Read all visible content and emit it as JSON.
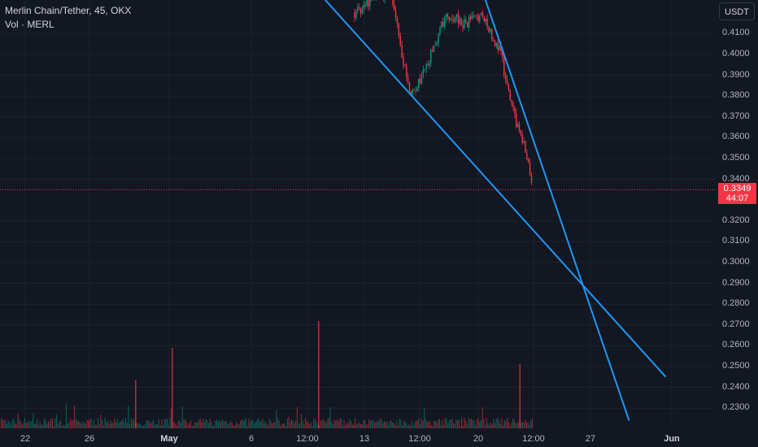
{
  "legend": {
    "symbol": "Merlin Chain/Tether, 45, OKX",
    "volume": "Vol · MERL"
  },
  "currency_button": "USDT",
  "current_price": {
    "price": "0.3349",
    "countdown": "44:07",
    "color": "#f23645"
  },
  "price_axis": [
    "0.4100",
    "0.4000",
    "0.3900",
    "0.3800",
    "0.3700",
    "0.3600",
    "0.3500",
    "0.3400",
    "0.3200",
    "0.3100",
    "0.3000",
    "0.2900",
    "0.2800",
    "0.2700",
    "0.2600",
    "0.2500",
    "0.2400",
    "0.2300"
  ],
  "time_axis": [
    {
      "label": "22",
      "bold": false
    },
    {
      "label": "26",
      "bold": false
    },
    {
      "label": "May",
      "bold": true
    },
    {
      "label": "6",
      "bold": false
    },
    {
      "label": "12:00",
      "bold": false
    },
    {
      "label": "13",
      "bold": false
    },
    {
      "label": "12:00",
      "bold": false
    },
    {
      "label": "20",
      "bold": false
    },
    {
      "label": "12:00",
      "bold": false
    },
    {
      "label": "27",
      "bold": false
    },
    {
      "label": "Jun",
      "bold": true
    }
  ],
  "colors": {
    "background": "#131722",
    "up": "#089981",
    "down": "#f23645",
    "trendline": "#2196f3",
    "text": "#b2b5be"
  },
  "chart_data": {
    "type": "candlestick",
    "symbol": "Merlin Chain/Tether",
    "interval": "45",
    "exchange": "OKX",
    "last_price": 0.3349,
    "ylim": [
      0.225,
      0.425
    ],
    "y_scale": "linear",
    "grid": true,
    "price_path": [
      {
        "time": "May 10",
        "price": 0.42
      },
      {
        "time": "May 11",
        "price": 0.427
      },
      {
        "time": "May 12",
        "price": 0.43
      },
      {
        "time": "May 13",
        "price": 0.38
      },
      {
        "time": "May 14",
        "price": 0.395
      },
      {
        "time": "May 15",
        "price": 0.42
      },
      {
        "time": "May 16",
        "price": 0.415
      },
      {
        "time": "May 17",
        "price": 0.418
      },
      {
        "time": "May 18",
        "price": 0.4
      },
      {
        "time": "May 18 12:00",
        "price": 0.378
      },
      {
        "time": "May 19",
        "price": 0.362
      },
      {
        "time": "May 19 12:00",
        "price": 0.349
      },
      {
        "time": "May 19 18:00",
        "price": 0.3349
      }
    ],
    "volume_spikes": [
      {
        "time": "Apr 28",
        "relative": 0.45
      },
      {
        "time": "Apr 30",
        "relative": 0.75
      },
      {
        "time": "May 8",
        "relative": 1.0
      },
      {
        "time": "May 19",
        "relative": 0.6
      }
    ],
    "trendlines": [
      {
        "from": {
          "time": "May 8",
          "price": 0.43
        },
        "to": {
          "time": "May 27",
          "price": 0.245
        }
      },
      {
        "from": {
          "time": "May 17",
          "price": 0.43
        },
        "to": {
          "time": "May 25",
          "price": 0.224
        }
      }
    ]
  }
}
